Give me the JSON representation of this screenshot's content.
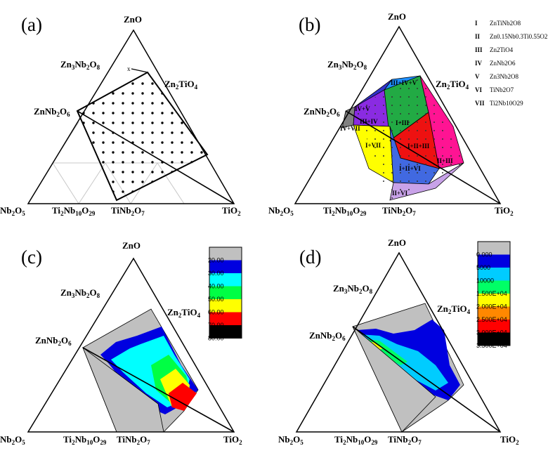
{
  "panels": {
    "a": {
      "letter": "(a)"
    },
    "b": {
      "letter": "(b)"
    },
    "c": {
      "letter": "(c)"
    },
    "d": {
      "letter": "(d)"
    }
  },
  "labels": {
    "ZnO": "ZnO",
    "Zn3Nb2O8": "Zn3Nb2O8",
    "Zn2TiO4": "Zn2TiO4",
    "ZnNb2O6": "ZnNb2O6",
    "Nb2O5": "Nb2O5",
    "Ti2Nb10O29": "Ti2Nb10O29",
    "TiNb2O7": "TiNb2O7",
    "TiO2": "TiO2"
  },
  "panel_b_legend": [
    {
      "numeral": "I",
      "phase": "ZnTiNb2O8"
    },
    {
      "numeral": "II",
      "phase": "Zn0.15Nb0.3Ti0.55O2"
    },
    {
      "numeral": "III",
      "phase": "Zn2TiO4"
    },
    {
      "numeral": "IV",
      "phase": "ZnNb2O6"
    },
    {
      "numeral": "V",
      "phase": "Zn3Nb2O8"
    },
    {
      "numeral": "VI",
      "phase": "TiNb2O7"
    },
    {
      "numeral": "VII",
      "phase": "Ti2Nb10O29"
    }
  ],
  "panel_b_regions": [
    {
      "label": "III+IV+V",
      "color": "#1e90ff"
    },
    {
      "label": "IV+V",
      "color": "#3333cc"
    },
    {
      "label": "IV+VII",
      "color": "#808080"
    },
    {
      "label": "III+IV",
      "color": "#8a2be2"
    },
    {
      "label": "I+III",
      "color": "#22aa44"
    },
    {
      "label": "I+VII",
      "color": "#ffff00"
    },
    {
      "label": "I+II+III",
      "color": "#ee1111"
    },
    {
      "label": "II+III",
      "color": "#ff1493"
    },
    {
      "label": "I+II+VI",
      "color": "#4169e1"
    },
    {
      "label": "II+VI",
      "color": "#c8a2e8"
    }
  ],
  "colorbar_c": {
    "ticks": [
      "20.00",
      "30.00",
      "40.00",
      "50.00",
      "60.00",
      "70.00",
      "80.00"
    ],
    "colors": [
      "#c0c0c0",
      "#0000e0",
      "#00ffff",
      "#00ff44",
      "#ffff00",
      "#ff0000",
      "#000000"
    ]
  },
  "colorbar_d": {
    "ticks": [
      "0.000",
      "5000",
      "10000",
      "1.500E+04",
      "2.000E+04",
      "2.500E+04",
      "3.000E+04",
      "3.500E+04"
    ],
    "colors": [
      "#c0c0c0",
      "#0000e0",
      "#00ccff",
      "#00ff66",
      "#ffff00",
      "#ff8800",
      "#ff0000",
      "#000000"
    ]
  }
}
